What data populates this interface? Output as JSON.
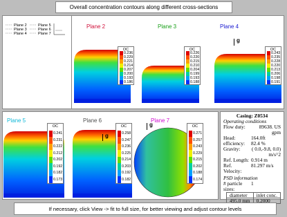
{
  "header": {
    "title": "Overall concentration contours along different cross-sections"
  },
  "legend": {
    "items": [
      "Plane 2",
      "Plane 3",
      "Plane 4",
      "Plane 5",
      "Plane 6",
      "Plane 7"
    ]
  },
  "plots": [
    {
      "title": "Plane 2",
      "color": "#d0103a",
      "colorbar_title": "OC",
      "levels": [
        "0.236",
        "0.229",
        "0.221",
        "0.214",
        "0.207",
        "0.200",
        "0.193",
        "0.186"
      ]
    },
    {
      "title": "Plane 3",
      "color": "#1aa01a",
      "colorbar_title": "OC",
      "levels": [
        "0.226",
        "0.220",
        "0.215",
        "0.210",
        "0.204",
        "0.199",
        "0.193",
        "0.188"
      ]
    },
    {
      "title": "Plane 4",
      "color": "#1a1ad0",
      "colorbar_title": "OC",
      "levels": [
        "0.243",
        "0.235",
        "0.228",
        "0.220",
        "0.213",
        "0.206",
        "0.198",
        "0.191"
      ],
      "gravity_label": "g"
    },
    {
      "title": "Plane 5",
      "color": "#10b8d8",
      "colorbar_title": "OC",
      "levels": [
        "0.241",
        "0.231",
        "0.222",
        "0.212",
        "0.202",
        "0.192",
        "0.182",
        "0.173"
      ]
    },
    {
      "title": "Plane 6",
      "color": "#505050",
      "colorbar_title": "OC",
      "levels": [
        "0.258",
        "0.247",
        "0.236",
        "0.225",
        "0.214",
        "0.203",
        "0.192",
        "0.182"
      ],
      "gravity_label": "g"
    },
    {
      "title": "Plane 7",
      "color": "#d010d0",
      "colorbar_title": "OC",
      "levels": [
        "0.271",
        "0.257",
        "0.243",
        "0.229",
        "0.215",
        "0.202",
        "0.188",
        "0.174"
      ],
      "gravity_label": "g"
    }
  ],
  "info": {
    "title": "Casing: Z0534",
    "operating_title": "Operating conditions",
    "operating": [
      [
        "Flow duty:",
        "89638. US gpm"
      ],
      [
        "Head:",
        "164.0ft"
      ],
      [
        "efficiency:",
        "82.4 %"
      ],
      [
        "Gravity:",
        "( 0.0,-9.8, 0.0) m/s^2"
      ],
      [
        "Ref. Length:",
        "0.914 m"
      ],
      [
        "Ref. Velocity:",
        "81.297 m/s"
      ]
    ],
    "psd_title": "PSD information",
    "psd": [
      [
        "# particle sizes:",
        "1"
      ]
    ],
    "table": {
      "header": [
        "diameter",
        "inlet conc."
      ],
      "rows": [
        [
          "495.0 mm",
          "0.2000"
        ]
      ]
    }
  },
  "footer": {
    "note": "If necessary, click View -> fit to full size, for better viewing and adjust contour levels"
  }
}
